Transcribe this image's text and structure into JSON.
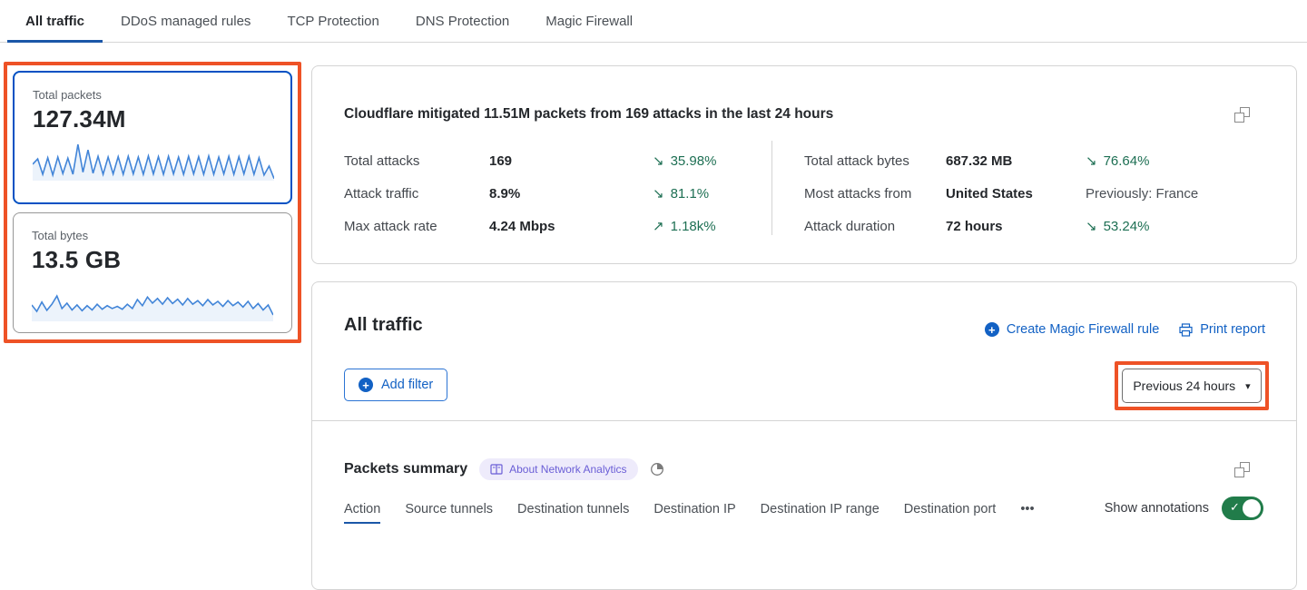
{
  "colors": {
    "accent_blue": "#0051c3",
    "tab_underline": "#1b57a8",
    "link_blue": "#1261c4",
    "trend_green": "#1d6f53",
    "toggle_green": "#217c4a",
    "highlight_orange": "#ee5226",
    "sparkline_blue": "#4285d8",
    "badge_bg": "#eeebfb",
    "badge_text": "#6a5ed6"
  },
  "tabs": {
    "items": [
      {
        "label": "All traffic",
        "active": true
      },
      {
        "label": "DDoS managed rules",
        "active": false
      },
      {
        "label": "TCP Protection",
        "active": false
      },
      {
        "label": "DNS Protection",
        "active": false
      },
      {
        "label": "Magic Firewall",
        "active": false
      }
    ]
  },
  "cards": {
    "packets": {
      "label": "Total packets",
      "value": "127.34M",
      "selected": true,
      "sparkline": [
        40,
        55,
        12,
        58,
        10,
        60,
        14,
        57,
        12,
        95,
        18,
        80,
        15,
        62,
        12,
        60,
        13,
        61,
        12,
        62,
        13,
        60,
        12,
        63,
        13,
        61,
        12,
        62,
        13,
        60,
        12,
        62,
        13,
        61,
        12,
        63,
        12,
        60,
        13,
        62,
        12,
        61,
        13,
        62,
        12,
        58,
        10,
        35,
        0
      ]
    },
    "bytes": {
      "label": "Total bytes",
      "value": "13.5 GB",
      "selected": false,
      "sparkline": [
        40,
        22,
        48,
        25,
        42,
        65,
        30,
        45,
        26,
        40,
        24,
        38,
        26,
        42,
        28,
        38,
        30,
        36,
        28,
        42,
        30,
        55,
        38,
        62,
        45,
        58,
        42,
        60,
        44,
        56,
        40,
        58,
        42,
        52,
        38,
        55,
        40,
        50,
        36,
        52,
        38,
        48,
        34,
        50,
        30,
        44,
        26,
        40,
        12
      ]
    }
  },
  "summary": {
    "title": "Cloudflare mitigated 11.51M packets from 169 attacks in the last 24 hours",
    "left": [
      {
        "label": "Total attacks",
        "value": "169",
        "icon": "↘",
        "delta": "35.98%"
      },
      {
        "label": "Attack traffic",
        "value": "8.9%",
        "icon": "↘",
        "delta": "81.1%"
      },
      {
        "label": "Max attack rate",
        "value": "4.24 Mbps",
        "icon": "↗",
        "delta": "1.18k%"
      }
    ],
    "right": [
      {
        "label": "Total attack bytes",
        "value": "687.32 MB",
        "icon": "↘",
        "delta": "76.64%"
      },
      {
        "label": "Most attacks from",
        "value": "United States",
        "icon": "",
        "delta": "Previously: France"
      },
      {
        "label": "Attack duration",
        "value": "72 hours",
        "icon": "↘",
        "delta": "53.24%"
      }
    ]
  },
  "traffic": {
    "title": "All traffic",
    "create_rule_label": "Create Magic Firewall rule",
    "print_report_label": "Print report",
    "add_filter_label": "Add filter",
    "time_range_label": "Previous 24 hours",
    "caret": "▾"
  },
  "packets_summary": {
    "title": "Packets summary",
    "badge_label": "About Network Analytics",
    "subtabs": [
      {
        "label": "Action",
        "active": true
      },
      {
        "label": "Source tunnels",
        "active": false
      },
      {
        "label": "Destination tunnels",
        "active": false
      },
      {
        "label": "Destination IP",
        "active": false
      },
      {
        "label": "Destination IP range",
        "active": false
      },
      {
        "label": "Destination port",
        "active": false
      },
      {
        "label": "•••",
        "active": false
      }
    ],
    "show_annotations_label": "Show annotations",
    "toggle_on": true,
    "check_glyph": "✓"
  }
}
